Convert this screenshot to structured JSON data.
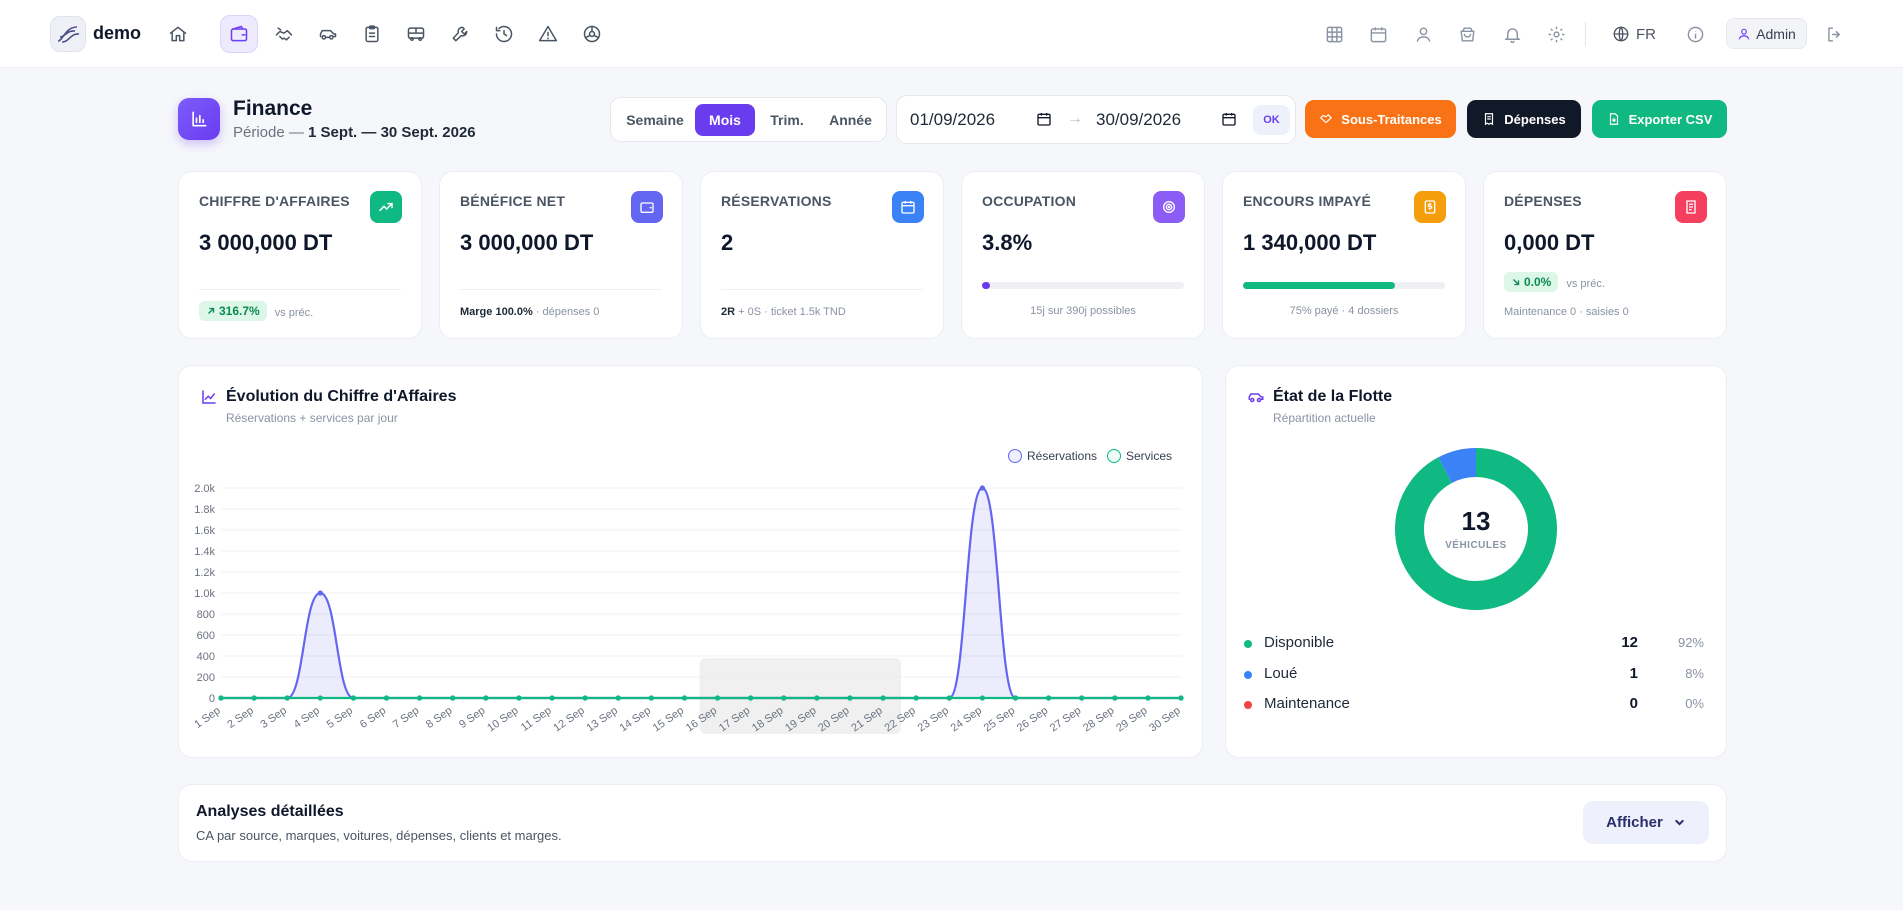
{
  "app": {
    "name": "demo"
  },
  "nav": [
    "home-icon",
    "wallet-icon",
    "handshake-icon",
    "car-icon",
    "clipboard-icon",
    "bus-icon",
    "wrench-icon",
    "history-icon",
    "alert-icon",
    "tire-icon"
  ],
  "topbar": {
    "lang": "FR",
    "user": "Admin"
  },
  "page": {
    "title": "Finance",
    "period_label": "Période —",
    "period_value": "1 Sept. — 30 Sept. 2026"
  },
  "periods": {
    "week": "Semaine",
    "month": "Mois",
    "quarter": "Trim.",
    "year": "Année",
    "active": "Mois"
  },
  "dates": {
    "from": "01/09/2026",
    "to": "30/09/2026",
    "ok": "OK",
    "arrow": "→"
  },
  "actions": {
    "subcontract": "Sous-Traitances",
    "expenses": "Dépenses",
    "export": "Exporter CSV"
  },
  "colors": {
    "accent": "#6a3cf0",
    "green": "#10b981",
    "orange": "#f97316",
    "blue": "#3b82f6",
    "red": "#ef4444"
  },
  "kpis": {
    "revenue": {
      "label": "CHIFFRE D'AFFAIRES",
      "value": "3 000,000 DT",
      "delta": "316.7%",
      "delta_note": "vs préc."
    },
    "profit": {
      "label": "BÉNÉFICE NET",
      "value": "3 000,000 DT",
      "margin": "Marge 100.0%",
      "margin_note": "· dépenses 0"
    },
    "bookings": {
      "label": "RÉSERVATIONS",
      "value": "2",
      "sub_bold": "2R",
      "sub_note": "+ 0S · ticket 1.5k TND"
    },
    "occupancy": {
      "label": "OCCUPATION",
      "value": "3.8%",
      "progress": 0.038,
      "note": "15j sur 390j possibles"
    },
    "unpaid": {
      "label": "ENCOURS IMPAYÉ",
      "value": "1 340,000 DT",
      "progress": 0.75,
      "note": "75% payé · 4 dossiers"
    },
    "expenses": {
      "label": "DÉPENSES",
      "value": "0,000 DT",
      "delta": "0.0%",
      "delta_note": "vs préc.",
      "note": "Maintenance 0 · saisies 0"
    }
  },
  "revenue_chart": {
    "title": "Évolution du Chiffre d'Affaires",
    "subtitle": "Réservations + services par jour"
  },
  "chart_data": {
    "type": "area",
    "x": [
      "1 Sep",
      "2 Sep",
      "3 Sep",
      "4 Sep",
      "5 Sep",
      "6 Sep",
      "7 Sep",
      "8 Sep",
      "9 Sep",
      "10 Sep",
      "11 Sep",
      "12 Sep",
      "13 Sep",
      "14 Sep",
      "15 Sep",
      "16 Sep",
      "17 Sep",
      "18 Sep",
      "19 Sep",
      "20 Sep",
      "21 Sep",
      "22 Sep",
      "23 Sep",
      "24 Sep",
      "25 Sep",
      "26 Sep",
      "27 Sep",
      "28 Sep",
      "29 Sep",
      "30 Sep"
    ],
    "series": [
      {
        "name": "Réservations",
        "color": "#6366f1",
        "values": [
          0,
          0,
          0,
          1000,
          0,
          0,
          0,
          0,
          0,
          0,
          0,
          0,
          0,
          0,
          0,
          0,
          0,
          0,
          0,
          0,
          0,
          0,
          0,
          2000,
          0,
          0,
          0,
          0,
          0,
          0
        ]
      },
      {
        "name": "Services",
        "color": "#10b981",
        "values": [
          0,
          0,
          0,
          0,
          0,
          0,
          0,
          0,
          0,
          0,
          0,
          0,
          0,
          0,
          0,
          0,
          0,
          0,
          0,
          0,
          0,
          0,
          0,
          0,
          0,
          0,
          0,
          0,
          0,
          0
        ]
      }
    ],
    "yticks": [
      "0",
      "200",
      "400",
      "600",
      "800",
      "1.0k",
      "1.2k",
      "1.4k",
      "1.6k",
      "1.8k",
      "2.0k"
    ],
    "ylim": [
      0,
      2000
    ],
    "legend_position": "top-right",
    "grid": true
  },
  "fleet": {
    "title": "État de la Flotte",
    "subtitle": "Répartition actuelle",
    "total": "13",
    "total_label": "VÉHICULES",
    "items": [
      {
        "name": "Disponible",
        "count": 12,
        "pct": "92%",
        "color": "#10b981"
      },
      {
        "name": "Loué",
        "count": 1,
        "pct": "8%",
        "color": "#3b82f6"
      },
      {
        "name": "Maintenance",
        "count": 0,
        "pct": "0%",
        "color": "#ef4444"
      }
    ]
  },
  "details": {
    "title": "Analyses détaillées",
    "subtitle": "CA par source, marques, voitures, dépenses, clients et marges.",
    "button": "Afficher"
  }
}
